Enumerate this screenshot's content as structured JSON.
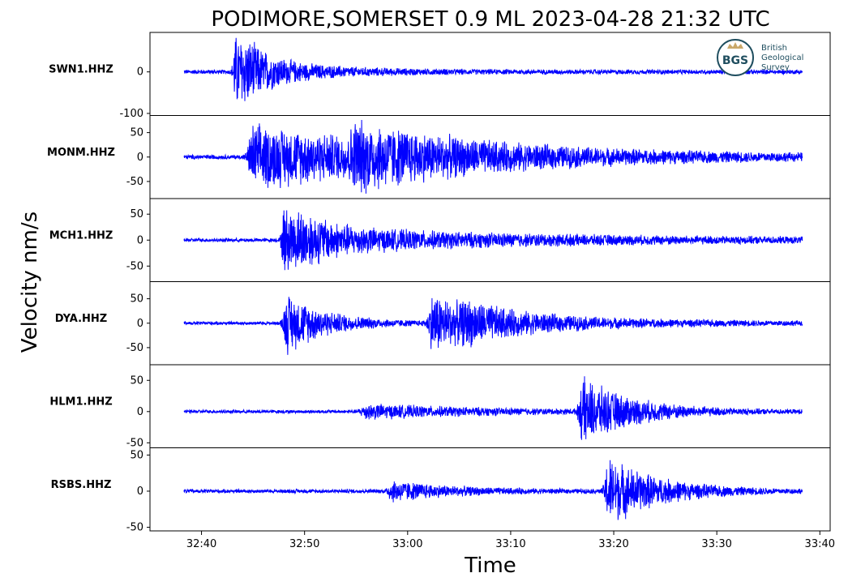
{
  "chart_data": {
    "type": "line",
    "title": "PODIMORE,SOMERSET 0.9 ML   2023-04-28 21:32 UTC",
    "xlabel": "Time",
    "ylabel": "Velocity nm/s",
    "x_range": [
      "21:32:35",
      "21:33:41"
    ],
    "x_ticks": [
      "32:40",
      "32:50",
      "33:00",
      "33:10",
      "33:20",
      "33:30",
      "33:40"
    ],
    "x_tick_seconds": [
      40,
      50,
      60,
      70,
      80,
      90,
      100
    ],
    "x_start_seconds": 35,
    "x_end_seconds": 101,
    "series_color": "#0000ff",
    "grid": false,
    "logo": {
      "text": [
        "British",
        "Geological",
        "Survey"
      ],
      "badge": "BGS"
    },
    "panels": [
      {
        "station": "SWN1.HHZ",
        "ylim": [
          -105,
          95
        ],
        "yticks": [
          0,
          -100
        ],
        "trace": {
          "start": 38.3,
          "end": 98.3,
          "noise": 6,
          "events": [
            {
              "t": 43.3,
              "amp": 95,
              "width": 0.8,
              "decay": 2.5
            },
            {
              "t": 44.5,
              "amp": 25,
              "width": 2,
              "decay": 8
            }
          ]
        }
      },
      {
        "station": "MONM.HHZ",
        "ylim": [
          -85,
          85
        ],
        "yticks": [
          50,
          0,
          -50
        ],
        "trace": {
          "start": 38.3,
          "end": 98.3,
          "noise": 5,
          "events": [
            {
              "t": 45.0,
              "amp": 70,
              "width": 1.5,
              "decay": 20
            },
            {
              "t": 55.0,
              "amp": 40,
              "width": 2,
              "decay": 10
            }
          ]
        }
      },
      {
        "station": "MCH1.HHZ",
        "ylim": [
          -80,
          80
        ],
        "yticks": [
          50,
          0,
          -50
        ],
        "trace": {
          "start": 38.3,
          "end": 98.3,
          "noise": 4,
          "events": [
            {
              "t": 48.0,
              "amp": 70,
              "width": 0.8,
              "decay": 3
            },
            {
              "t": 50.0,
              "amp": 25,
              "width": 3,
              "decay": 25
            }
          ]
        }
      },
      {
        "station": "DYA.HHZ",
        "ylim": [
          -85,
          85
        ],
        "yticks": [
          50,
          0,
          -50
        ],
        "trace": {
          "start": 38.3,
          "end": 98.3,
          "noise": 4,
          "events": [
            {
              "t": 48.3,
              "amp": 65,
              "width": 1.2,
              "decay": 4
            },
            {
              "t": 62.5,
              "amp": 65,
              "width": 1.5,
              "decay": 5
            },
            {
              "t": 66.0,
              "amp": 18,
              "width": 3,
              "decay": 15
            }
          ]
        }
      },
      {
        "station": "HLM1.HHZ",
        "ylim": [
          -58,
          75
        ],
        "yticks": [
          50,
          0,
          -50
        ],
        "trace": {
          "start": 38.3,
          "end": 98.3,
          "noise": 3,
          "events": [
            {
              "t": 56.0,
              "amp": 12,
              "width": 2,
              "decay": 12
            },
            {
              "t": 77.0,
              "amp": 55,
              "width": 1.2,
              "decay": 5
            }
          ]
        }
      },
      {
        "station": "RSBS.HHZ",
        "ylim": [
          -55,
          60
        ],
        "yticks": [
          50,
          0,
          -50
        ],
        "trace": {
          "start": 38.3,
          "end": 98.3,
          "noise": 3,
          "events": [
            {
              "t": 58.5,
              "amp": 15,
              "width": 1.5,
              "decay": 6
            },
            {
              "t": 79.5,
              "amp": 50,
              "width": 1.2,
              "decay": 5
            }
          ]
        }
      }
    ]
  }
}
